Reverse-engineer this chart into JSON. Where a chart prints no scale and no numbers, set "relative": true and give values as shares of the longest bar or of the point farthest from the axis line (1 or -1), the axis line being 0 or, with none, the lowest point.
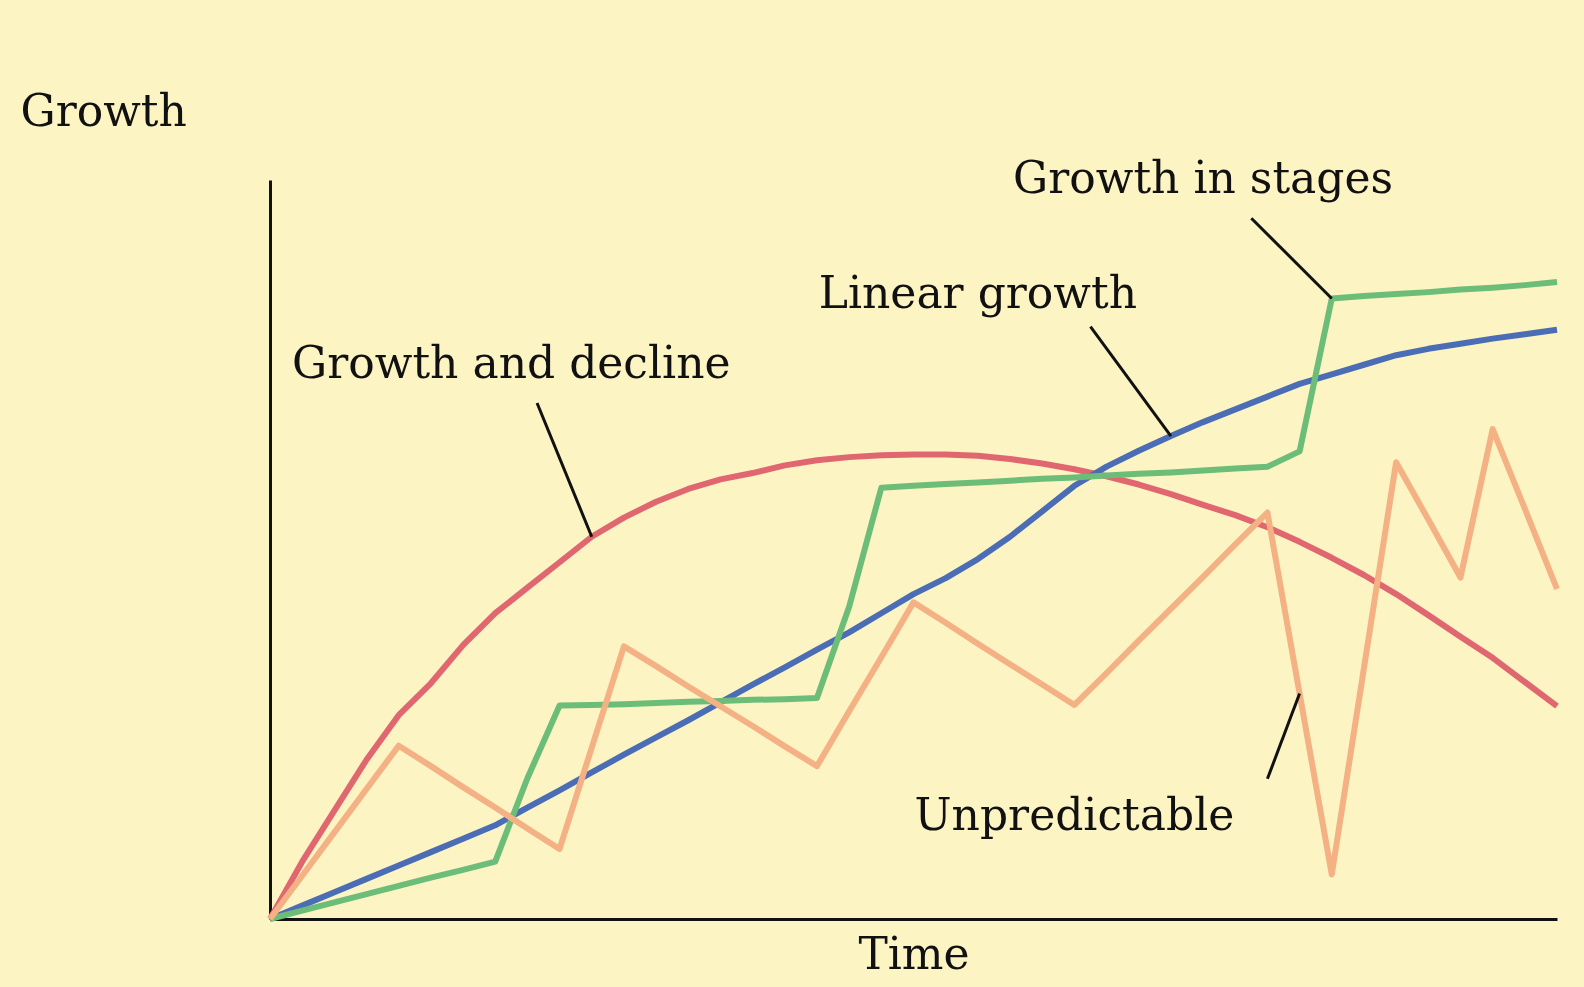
{
  "chart_data": {
    "type": "line",
    "xlabel": "Time",
    "ylabel": "Growth",
    "relative": true,
    "grid": false,
    "marker": "none",
    "line_style": "solid",
    "categories": [
      null,
      null,
      null,
      null,
      null,
      null,
      null,
      null,
      null,
      null,
      null,
      null,
      null,
      null,
      null,
      null,
      null,
      null,
      null,
      null,
      null,
      null,
      null,
      null,
      null,
      null,
      null,
      null,
      null,
      null,
      null,
      null,
      null,
      null,
      null,
      null,
      null,
      null,
      null,
      null,
      null
    ],
    "series": [
      {
        "name": "Growth and decline",
        "color": "#e0676f",
        "values": [
          0,
          0.09,
          0.17,
          0.25,
          0.32,
          0.37,
          0.43,
          0.48,
          0.52,
          0.56,
          0.6,
          0.63,
          0.655,
          0.675,
          0.69,
          0.7,
          0.712,
          0.72,
          0.725,
          0.728,
          0.729,
          0.729,
          0.727,
          0.722,
          0.715,
          0.706,
          0.695,
          0.682,
          0.667,
          0.65,
          0.634,
          0.615,
          0.592,
          0.567,
          0.54,
          0.51,
          0.477,
          0.443,
          0.41,
          0.372,
          0.334
        ]
      },
      {
        "name": "Linear growth",
        "color": "#4a6db5",
        "values": [
          0,
          0.021,
          0.042,
          0.063,
          0.084,
          0.105,
          0.126,
          0.147,
          0.175,
          0.202,
          0.23,
          0.258,
          0.285,
          0.312,
          0.34,
          0.368,
          0.395,
          0.423,
          0.45,
          0.48,
          0.51,
          0.535,
          0.565,
          0.6,
          0.64,
          0.68,
          0.71,
          0.735,
          0.758,
          0.78,
          0.8,
          0.82,
          0.84,
          0.855,
          0.87,
          0.885,
          0.895,
          0.903,
          0.911,
          0.918,
          0.925
        ]
      },
      {
        "name": "Growth in stages",
        "color": "#6cbd78",
        "values": [
          0,
          0.013,
          0.026,
          0.039,
          0.052,
          0.065,
          0.077,
          0.09,
          0.221,
          0.335,
          0.336,
          0.337,
          0.339,
          0.341,
          0.342,
          0.344,
          0.345,
          0.347,
          0.49,
          0.677,
          0.68,
          0.683,
          0.685,
          0.688,
          0.691,
          0.693,
          0.696,
          0.699,
          0.701,
          0.704,
          0.707,
          0.71,
          0.734,
          0.974,
          0.978,
          0.981,
          0.984,
          0.988,
          0.991,
          0.995,
          1.0
        ]
      },
      {
        "name": "Unpredictable",
        "color": "#f4b184",
        "values": [
          0,
          0.068,
          0.136,
          0.204,
          0.272,
          0.24,
          0.207,
          0.175,
          0.142,
          0.11,
          0.269,
          0.428,
          0.397,
          0.365,
          0.334,
          0.303,
          0.271,
          0.24,
          0.326,
          0.411,
          0.497,
          0.465,
          0.432,
          0.4,
          0.368,
          0.336,
          0.386,
          0.437,
          0.487,
          0.537,
          0.588,
          0.638,
          0.354,
          0.07,
          0.394,
          0.717,
          0.627,
          0.536,
          0.769,
          0.644,
          0.518
        ]
      }
    ]
  }
}
